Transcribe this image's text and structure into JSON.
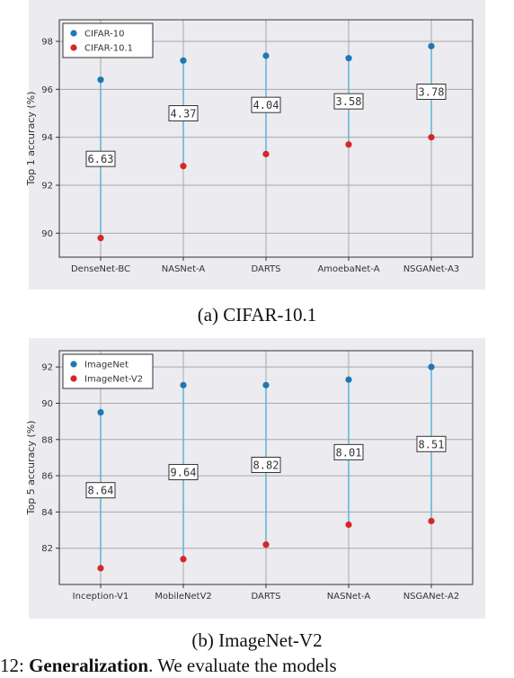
{
  "chart_data": [
    {
      "type": "scatter",
      "title": "",
      "xlabel": "",
      "ylabel": "Top 1 accuracy (%)",
      "categories": [
        "DenseNet-BC",
        "NASNet-A",
        "DARTS",
        "AmoebaNet-A",
        "NSGANet-A3"
      ],
      "series": [
        {
          "name": "CIFAR-10",
          "values": [
            96.4,
            97.2,
            97.4,
            97.3,
            97.8
          ],
          "color": "#1f77b4"
        },
        {
          "name": "CIFAR-10.1",
          "values": [
            89.8,
            92.8,
            93.3,
            93.7,
            94.0
          ],
          "color": "#d62728"
        }
      ],
      "gap_labels": [
        "6.63",
        "4.37",
        "4.04",
        "3.58",
        "3.78"
      ],
      "ylim": [
        89,
        98.9
      ],
      "yticks": [
        90,
        92,
        94,
        96,
        98
      ],
      "grid": true,
      "legend": "top-left",
      "connector_color": "#67b8d4"
    },
    {
      "type": "scatter",
      "title": "",
      "xlabel": "",
      "ylabel": "Top 5 accuracy (%)",
      "categories": [
        "Inception-V1",
        "MobileNetV2",
        "DARTS",
        "NASNet-A",
        "NSGANet-A2"
      ],
      "series": [
        {
          "name": "ImageNet",
          "values": [
            89.5,
            91.0,
            91.0,
            91.3,
            92.0
          ],
          "color": "#1f77b4"
        },
        {
          "name": "ImageNet-V2",
          "values": [
            80.9,
            81.4,
            82.2,
            83.3,
            83.5
          ],
          "color": "#d62728"
        }
      ],
      "gap_labels": [
        "8.64",
        "9.64",
        "8.82",
        "8.01",
        "8.51"
      ],
      "ylim": [
        80,
        92.9
      ],
      "yticks": [
        82,
        84,
        86,
        88,
        90,
        92
      ],
      "grid": true,
      "legend": "top-left",
      "connector_color": "#67b8d4"
    }
  ],
  "captions": {
    "a": "(a) CIFAR-10.1",
    "b": "(b) ImageNet-V2"
  },
  "footer": {
    "prefix": "12: ",
    "bold": "Generalization",
    "rest": ". We evaluate the models"
  }
}
